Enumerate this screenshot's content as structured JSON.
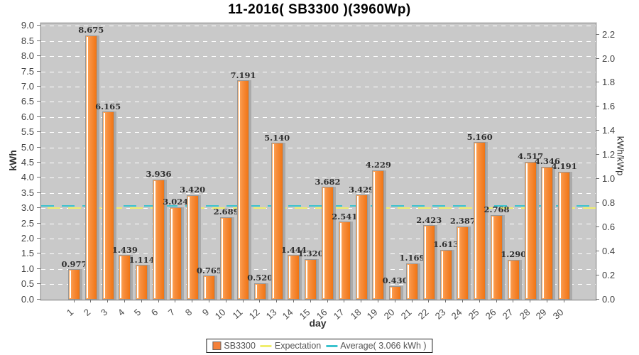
{
  "chart_data": {
    "type": "bar",
    "title": "11-2016( SB3300 )(3960Wp)",
    "xlabel": "day",
    "ylabel_left": "kWh",
    "ylabel_right": "kWh/kWp",
    "ylim_left": [
      0.0,
      9.09
    ],
    "ylim_right": [
      0.0,
      2.295
    ],
    "ytick_step_left": 0.5,
    "ytick_step_right": 0.2,
    "grid": true,
    "plant_kwp": 3.96,
    "categories": [
      "1",
      "2",
      "3",
      "4",
      "5",
      "6",
      "7",
      "8",
      "9",
      "10",
      "11",
      "12",
      "13",
      "14",
      "15",
      "16",
      "17",
      "18",
      "19",
      "20",
      "21",
      "22",
      "23",
      "24",
      "25",
      "26",
      "27",
      "28",
      "29",
      "30"
    ],
    "series": [
      {
        "name": "SB3300",
        "values": [
          0.977,
          8.675,
          6.165,
          1.439,
          1.114,
          3.936,
          3.024,
          3.42,
          0.765,
          2.689,
          7.191,
          0.52,
          5.14,
          1.444,
          1.32,
          3.682,
          2.541,
          3.429,
          4.229,
          0.43,
          1.169,
          2.423,
          1.613,
          2.387,
          5.16,
          2.768,
          1.29,
          4.517,
          4.346,
          4.191
        ]
      }
    ],
    "average_kwh": 3.066,
    "expectation_kwh": 3.0,
    "legend": {
      "position": "bottom",
      "items": [
        {
          "label": "SB3300",
          "type": "bar",
          "color": "#F5813A"
        },
        {
          "label": "Expectation",
          "type": "line",
          "color": "#F0EE6E"
        },
        {
          "label": "Average( 3.066 kWh )",
          "type": "line",
          "color": "#3BC3CE"
        }
      ]
    },
    "colors": {
      "plot_background": "#C9C9C9",
      "grid": "#FFFFFF",
      "bar_light": "#FFAC60",
      "bar_dark": "#F07514",
      "bar_border": "#979797",
      "bar_shadow": "#AAAAAA",
      "average_line": "#3BC3CE",
      "expectation_line": "#F0EE6E"
    }
  }
}
